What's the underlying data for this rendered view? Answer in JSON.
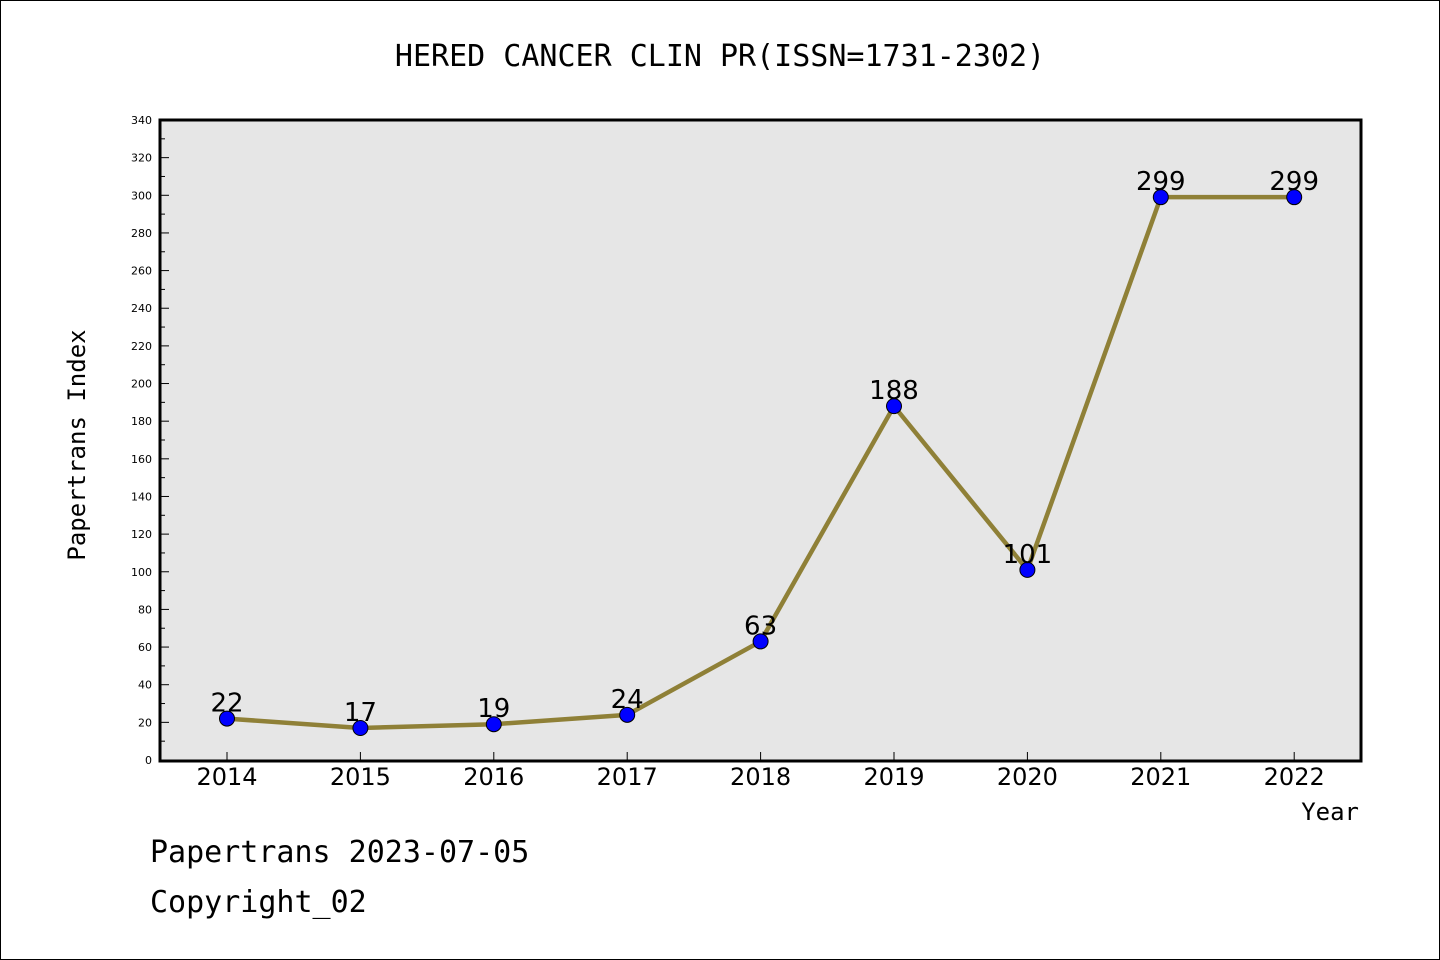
{
  "chart_data": {
    "type": "line",
    "title": "HERED CANCER CLIN PR(ISSN=1731-2302)",
    "xlabel": "Year",
    "ylabel": "Papertrans Index",
    "categories": [
      "2014",
      "2015",
      "2016",
      "2017",
      "2018",
      "2019",
      "2020",
      "2021",
      "2022"
    ],
    "series": [
      {
        "values": [
          22,
          17,
          19,
          24,
          63,
          188,
          101,
          299,
          299
        ]
      }
    ],
    "data_labels": [
      "22",
      "17",
      "19",
      "24",
      "63",
      "188",
      "101",
      "299",
      "299"
    ],
    "ylim": [
      0,
      340
    ],
    "yticks": [
      "0",
      "20",
      "40",
      "60",
      "80",
      "100",
      "120",
      "140",
      "160",
      "180",
      "200",
      "220",
      "240",
      "260",
      "280",
      "300",
      "320",
      "340"
    ],
    "grid": false,
    "legend": "none",
    "colors": {
      "line": "#8f8037",
      "marker": "#0000ff",
      "plot_background": "#e6e6e6"
    }
  },
  "footer": {
    "line1": "Papertrans 2023-07-05",
    "line2": "Copyright_02"
  }
}
